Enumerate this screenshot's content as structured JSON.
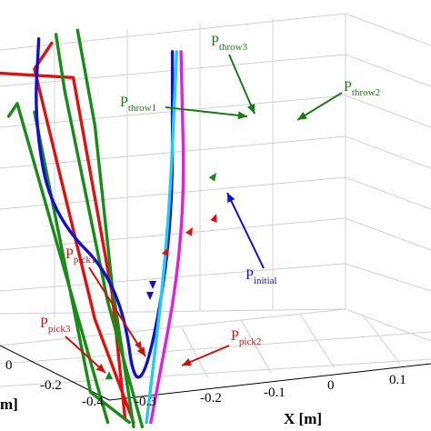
{
  "chart_data": {
    "type": "line",
    "xlabel": "X [m]",
    "ylabel": "m]",
    "x_ticks": [
      "-0.3",
      "-0.2",
      "-0.1",
      "0",
      "0.1"
    ],
    "y_ticks": [
      "0",
      "-0.2",
      "-0.4"
    ],
    "grid": true,
    "series": [
      {
        "color": "#dd1111",
        "label": "",
        "points": [
          [
            0.12,
            0.9
          ],
          [
            0.08,
            0.84
          ],
          [
            0.22,
            0.26
          ],
          [
            0.31,
            0.02
          ],
          [
            0.0,
            0.83
          ],
          [
            0.17,
            0.82
          ],
          [
            0.26,
            0.32
          ],
          [
            0.29,
            0.03
          ]
        ]
      },
      {
        "color": "#1a8a1a",
        "label": "",
        "points": [
          [
            0.02,
            0.73
          ],
          [
            0.04,
            0.76
          ],
          [
            0.25,
            0.02
          ],
          [
            0.08,
            0.74
          ],
          [
            0.21,
            0.09
          ],
          [
            0.3,
            0.02
          ],
          [
            0.13,
            0.92
          ],
          [
            0.15,
            0.79
          ],
          [
            0.25,
            0.3
          ],
          [
            0.33,
            0.01
          ],
          [
            0.18,
            0.93
          ],
          [
            0.22,
            0.71
          ],
          [
            0.26,
            0.34
          ],
          [
            0.31,
            0.01
          ]
        ]
      },
      {
        "color": "#1111cc",
        "label": "",
        "points": [
          [
            0.09,
            0.91
          ],
          [
            0.08,
            0.72
          ],
          [
            0.12,
            0.5
          ],
          [
            0.28,
            0.34
          ],
          [
            0.32,
            0.04
          ],
          [
            0.4,
            0.43
          ],
          [
            0.4,
            0.88
          ]
        ]
      },
      {
        "color": "#22ccee",
        "label": "",
        "points": [
          [
            0.34,
            0.02
          ],
          [
            0.39,
            0.44
          ],
          [
            0.41,
            0.88
          ]
        ]
      },
      {
        "color": "#dd22dd",
        "label": "",
        "points": [
          [
            0.35,
            0.02
          ],
          [
            0.43,
            0.45
          ],
          [
            0.42,
            0.88
          ]
        ]
      }
    ],
    "annotations": [
      {
        "base": "P",
        "sub": "throw3",
        "color": "#1a7a1a"
      },
      {
        "base": "P",
        "sub": "throw1",
        "color": "#1a7a1a"
      },
      {
        "base": "P",
        "sub": "throw2",
        "color": "#1a7a1a"
      },
      {
        "base": "P",
        "sub": "initial",
        "color": "#1111cc"
      },
      {
        "base": "P",
        "sub": "pick1",
        "color": "#cc1111"
      },
      {
        "base": "P",
        "sub": "pick3",
        "color": "#cc1111"
      },
      {
        "base": "P",
        "sub": "pick2",
        "color": "#cc1111"
      }
    ]
  }
}
